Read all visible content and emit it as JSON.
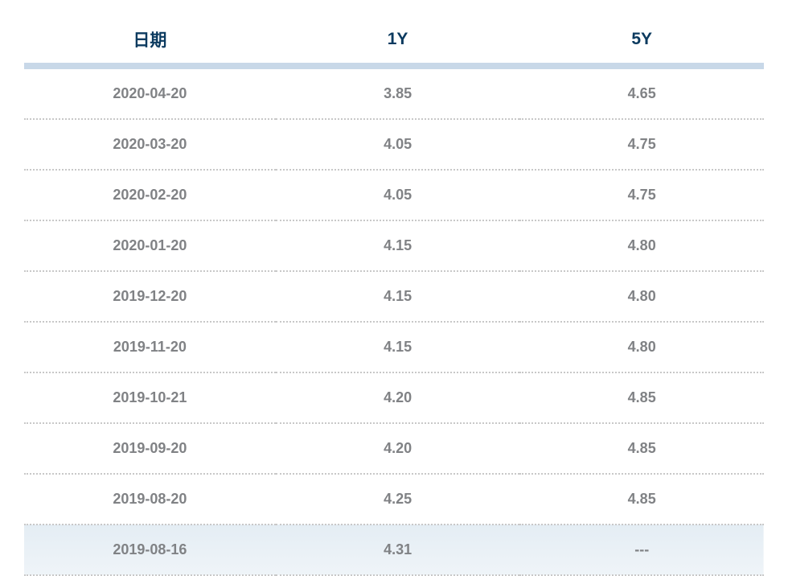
{
  "table": {
    "type": "table",
    "header_color": "#0b3a5f",
    "header_fontsize": 21,
    "header_fontweight": 700,
    "header_border_color": "#c8d8e8",
    "header_border_width": 8,
    "row_text_color": "#808285",
    "row_fontsize": 18,
    "row_fontweight": 700,
    "row_border_style": "dotted",
    "row_border_color": "#c8c8c8",
    "highlight_bg_start": "#e4edf4",
    "highlight_bg_end": "#eff4f8",
    "background_color": "#ffffff",
    "columns": [
      {
        "key": "date",
        "label": "日期",
        "width": "34%",
        "align": "center"
      },
      {
        "key": "y1",
        "label": "1Y",
        "width": "33%",
        "align": "center"
      },
      {
        "key": "y5",
        "label": "5Y",
        "width": "33%",
        "align": "center"
      }
    ],
    "rows": [
      {
        "date": "2020-04-20",
        "y1": "3.85",
        "y5": "4.65",
        "highlighted": false
      },
      {
        "date": "2020-03-20",
        "y1": "4.05",
        "y5": "4.75",
        "highlighted": false
      },
      {
        "date": "2020-02-20",
        "y1": "4.05",
        "y5": "4.75",
        "highlighted": false
      },
      {
        "date": "2020-01-20",
        "y1": "4.15",
        "y5": "4.80",
        "highlighted": false
      },
      {
        "date": "2019-12-20",
        "y1": "4.15",
        "y5": "4.80",
        "highlighted": false
      },
      {
        "date": "2019-11-20",
        "y1": "4.15",
        "y5": "4.80",
        "highlighted": false
      },
      {
        "date": "2019-10-21",
        "y1": "4.20",
        "y5": "4.85",
        "highlighted": false
      },
      {
        "date": "2019-09-20",
        "y1": "4.20",
        "y5": "4.85",
        "highlighted": false
      },
      {
        "date": "2019-08-20",
        "y1": "4.25",
        "y5": "4.85",
        "highlighted": false
      },
      {
        "date": "2019-08-16",
        "y1": "4.31",
        "y5": "---",
        "highlighted": true
      }
    ]
  }
}
